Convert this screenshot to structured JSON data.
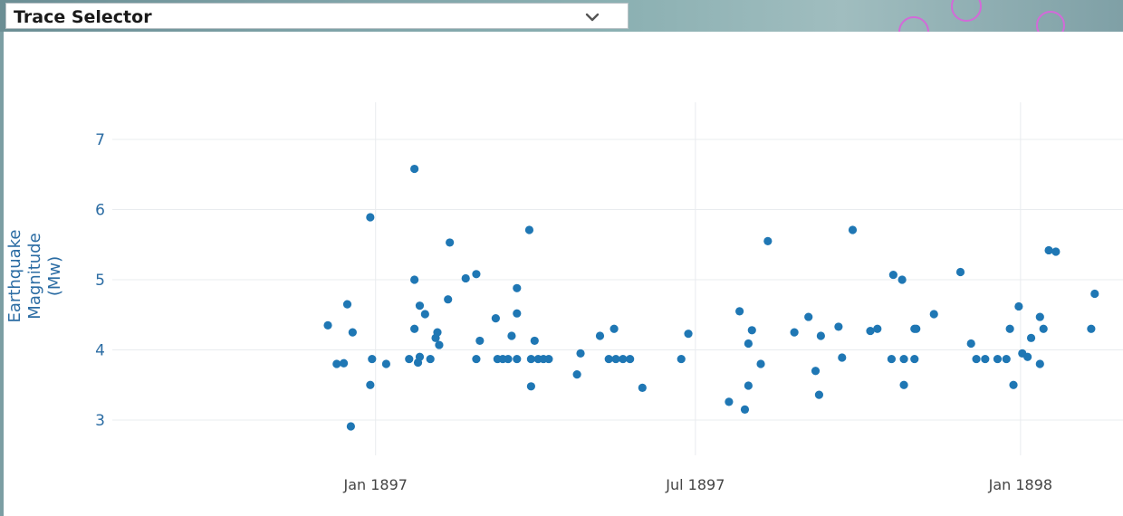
{
  "selector": {
    "label": "Trace Selector",
    "icon": "chevron-down-icon"
  },
  "colors": {
    "marker": "#1f77b4",
    "axis_text": "#2b6ca3",
    "tick_text": "#444444",
    "grid": "#e9ecef"
  },
  "chart_data": {
    "type": "scatter",
    "title": "",
    "xlabel": "",
    "ylabel": "Earthquake Magnitude (Mw)",
    "ylabel_lines": [
      "Earthquake",
      "Magnitude",
      "(Mw)"
    ],
    "x_ticks": [
      {
        "label": "Jan 1897",
        "date": "1897-01-01"
      },
      {
        "label": "Jul 1897",
        "date": "1897-07-01"
      },
      {
        "label": "Jan 1898",
        "date": "1898-01-01"
      }
    ],
    "y_ticks": [
      3,
      4,
      5,
      6,
      7
    ],
    "xlim": [
      "1896-08-05",
      "1898-02-28"
    ],
    "ylim": [
      2.6,
      7.4
    ],
    "grid": true,
    "points": [
      {
        "x": "1896-12-05",
        "y": 4.35
      },
      {
        "x": "1896-12-10",
        "y": 3.8
      },
      {
        "x": "1896-12-14",
        "y": 3.81
      },
      {
        "x": "1896-12-16",
        "y": 4.65
      },
      {
        "x": "1896-12-19",
        "y": 4.25
      },
      {
        "x": "1896-12-18",
        "y": 2.91
      },
      {
        "x": "1896-12-29",
        "y": 5.89
      },
      {
        "x": "1896-12-30",
        "y": 3.87
      },
      {
        "x": "1896-12-29",
        "y": 3.5
      },
      {
        "x": "1897-01-07",
        "y": 3.8
      },
      {
        "x": "1897-01-20",
        "y": 3.87
      },
      {
        "x": "1897-01-23",
        "y": 6.58
      },
      {
        "x": "1897-01-23",
        "y": 5.0
      },
      {
        "x": "1897-01-23",
        "y": 4.3
      },
      {
        "x": "1897-01-25",
        "y": 3.82
      },
      {
        "x": "1897-01-26",
        "y": 4.63
      },
      {
        "x": "1897-01-26",
        "y": 3.9
      },
      {
        "x": "1897-01-29",
        "y": 4.51
      },
      {
        "x": "1897-02-01",
        "y": 3.87
      },
      {
        "x": "1897-02-04",
        "y": 4.17
      },
      {
        "x": "1897-02-05",
        "y": 4.25
      },
      {
        "x": "1897-02-06",
        "y": 4.07
      },
      {
        "x": "1897-02-11",
        "y": 4.72
      },
      {
        "x": "1897-02-12",
        "y": 5.53
      },
      {
        "x": "1897-02-21",
        "y": 5.02
      },
      {
        "x": "1897-02-27",
        "y": 5.08
      },
      {
        "x": "1897-02-27",
        "y": 3.87
      },
      {
        "x": "1897-03-01",
        "y": 4.13
      },
      {
        "x": "1897-03-10",
        "y": 4.45
      },
      {
        "x": "1897-03-11",
        "y": 3.87
      },
      {
        "x": "1897-03-14",
        "y": 3.87
      },
      {
        "x": "1897-03-17",
        "y": 3.87
      },
      {
        "x": "1897-03-19",
        "y": 4.2
      },
      {
        "x": "1897-03-22",
        "y": 4.88
      },
      {
        "x": "1897-03-22",
        "y": 4.52
      },
      {
        "x": "1897-03-22",
        "y": 3.87
      },
      {
        "x": "1897-03-29",
        "y": 5.71
      },
      {
        "x": "1897-03-30",
        "y": 3.87
      },
      {
        "x": "1897-03-30",
        "y": 3.48
      },
      {
        "x": "1897-04-01",
        "y": 4.13
      },
      {
        "x": "1897-04-03",
        "y": 3.87
      },
      {
        "x": "1897-04-06",
        "y": 3.87
      },
      {
        "x": "1897-04-09",
        "y": 3.87
      },
      {
        "x": "1897-04-25",
        "y": 3.65
      },
      {
        "x": "1897-04-27",
        "y": 3.95
      },
      {
        "x": "1897-05-08",
        "y": 4.2
      },
      {
        "x": "1897-05-13",
        "y": 3.87
      },
      {
        "x": "1897-05-16",
        "y": 4.3
      },
      {
        "x": "1897-05-17",
        "y": 3.87
      },
      {
        "x": "1897-05-21",
        "y": 3.87
      },
      {
        "x": "1897-05-25",
        "y": 3.87
      },
      {
        "x": "1897-06-01",
        "y": 3.46
      },
      {
        "x": "1897-06-23",
        "y": 3.87
      },
      {
        "x": "1897-06-27",
        "y": 4.23
      },
      {
        "x": "1897-07-20",
        "y": 3.26
      },
      {
        "x": "1897-07-26",
        "y": 4.55
      },
      {
        "x": "1897-07-29",
        "y": 3.15
      },
      {
        "x": "1897-07-31",
        "y": 3.49
      },
      {
        "x": "1897-07-31",
        "y": 4.09
      },
      {
        "x": "1897-08-02",
        "y": 4.28
      },
      {
        "x": "1897-08-07",
        "y": 3.8
      },
      {
        "x": "1897-08-11",
        "y": 5.55
      },
      {
        "x": "1897-08-26",
        "y": 4.25
      },
      {
        "x": "1897-09-03",
        "y": 4.47
      },
      {
        "x": "1897-09-07",
        "y": 3.7
      },
      {
        "x": "1897-09-09",
        "y": 3.36
      },
      {
        "x": "1897-09-10",
        "y": 4.2
      },
      {
        "x": "1897-09-20",
        "y": 4.33
      },
      {
        "x": "1897-09-22",
        "y": 3.89
      },
      {
        "x": "1897-09-28",
        "y": 5.71
      },
      {
        "x": "1897-10-08",
        "y": 4.27
      },
      {
        "x": "1897-10-12",
        "y": 4.3
      },
      {
        "x": "1897-10-21",
        "y": 5.07
      },
      {
        "x": "1897-10-20",
        "y": 3.87
      },
      {
        "x": "1897-10-26",
        "y": 5.0
      },
      {
        "x": "1897-10-27",
        "y": 3.5
      },
      {
        "x": "1897-10-27",
        "y": 3.87
      },
      {
        "x": "1897-11-02",
        "y": 4.3
      },
      {
        "x": "1897-11-03",
        "y": 4.3
      },
      {
        "x": "1897-11-02",
        "y": 3.87
      },
      {
        "x": "1897-11-13",
        "y": 4.51
      },
      {
        "x": "1897-11-28",
        "y": 5.11
      },
      {
        "x": "1897-12-04",
        "y": 4.09
      },
      {
        "x": "1897-12-07",
        "y": 3.87
      },
      {
        "x": "1897-12-12",
        "y": 3.87
      },
      {
        "x": "1897-12-19",
        "y": 3.87
      },
      {
        "x": "1897-12-24",
        "y": 3.87
      },
      {
        "x": "1897-12-26",
        "y": 4.3
      },
      {
        "x": "1897-12-28",
        "y": 3.5
      },
      {
        "x": "1897-12-31",
        "y": 4.62
      },
      {
        "x": "1898-01-02",
        "y": 3.95
      },
      {
        "x": "1898-01-05",
        "y": 3.9
      },
      {
        "x": "1898-01-07",
        "y": 4.17
      },
      {
        "x": "1898-01-12",
        "y": 4.47
      },
      {
        "x": "1898-01-12",
        "y": 3.8
      },
      {
        "x": "1898-01-14",
        "y": 4.3
      },
      {
        "x": "1898-01-17",
        "y": 5.42
      },
      {
        "x": "1898-01-21",
        "y": 5.4
      },
      {
        "x": "1898-02-10",
        "y": 4.3
      },
      {
        "x": "1898-02-12",
        "y": 4.8
      }
    ]
  }
}
